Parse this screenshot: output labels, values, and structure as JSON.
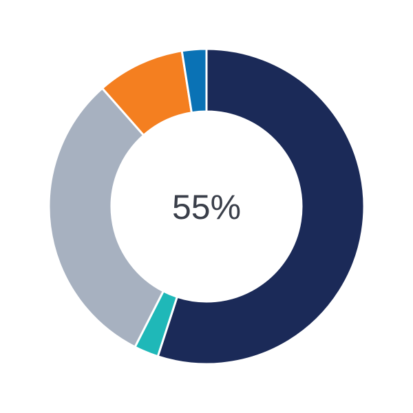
{
  "chart_data": {
    "type": "pie",
    "variant": "donut",
    "center_label": "55%",
    "slices": [
      {
        "value": 55,
        "color": "#1b2a58"
      },
      {
        "value": 2.5,
        "color": "#1fb8b8"
      },
      {
        "value": 31,
        "color": "#a7b1c0"
      },
      {
        "value": 9,
        "color": "#f47f20"
      },
      {
        "value": 2.5,
        "color": "#0a72b5"
      }
    ],
    "start_angle": "top",
    "direction": "clockwise",
    "legend": "none"
  }
}
